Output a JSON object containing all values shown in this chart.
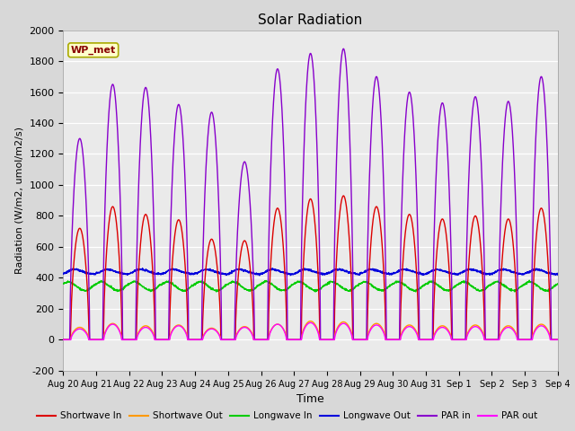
{
  "title": "Solar Radiation",
  "ylabel": "Radiation (W/m2, umol/m2/s)",
  "xlabel": "Time",
  "ylim": [
    -200,
    2000
  ],
  "yticks": [
    -200,
    0,
    200,
    400,
    600,
    800,
    1000,
    1200,
    1400,
    1600,
    1800,
    2000
  ],
  "bg_color": "#d8d8d8",
  "plot_bg_color": "#eaeaea",
  "series": {
    "shortwave_in": {
      "color": "#dd0000",
      "label": "Shortwave In"
    },
    "shortwave_out": {
      "color": "#ff9900",
      "label": "Shortwave Out"
    },
    "longwave_in": {
      "color": "#00cc00",
      "label": "Longwave In"
    },
    "longwave_out": {
      "color": "#0000dd",
      "label": "Longwave Out"
    },
    "par_in": {
      "color": "#8800cc",
      "label": "PAR in"
    },
    "par_out": {
      "color": "#ff00ff",
      "label": "PAR out"
    }
  },
  "n_days": 15,
  "x_tick_labels": [
    "Aug 20",
    "Aug 21",
    "Aug 22",
    "Aug 23",
    "Aug 24",
    "Aug 25",
    "Aug 26",
    "Aug 27",
    "Aug 28",
    "Aug 29",
    "Aug 30",
    "Aug 31",
    "Sep 1",
    "Sep 2",
    "Sep 3",
    "Sep 4"
  ],
  "wp_met_box_color": "#ffffcc",
  "wp_met_text_color": "#880000",
  "par_in_peaks": [
    1300,
    1650,
    1630,
    1520,
    1470,
    1150,
    1750,
    1850,
    1880,
    1700,
    1600,
    1530,
    1570,
    1540,
    1700
  ],
  "sw_in_peaks": [
    720,
    860,
    810,
    775,
    650,
    640,
    850,
    910,
    930,
    860,
    810,
    780,
    800,
    780,
    850
  ],
  "par_out_peaks": [
    70,
    100,
    80,
    90,
    70,
    80,
    100,
    110,
    105,
    95,
    85,
    80,
    85,
    80,
    90
  ],
  "sw_out_peaks": [
    80,
    105,
    90,
    95,
    75,
    85,
    100,
    120,
    115,
    105,
    95,
    90,
    95,
    90,
    100
  ],
  "lw_in_base": 360,
  "lw_out_base": 420,
  "day_start": 0.25,
  "day_end": 0.75
}
